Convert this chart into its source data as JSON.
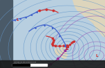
{
  "bg_ocean": "#b8cfe0",
  "bg_dark_left": "#4a5a68",
  "land_color": "#ddd5bc",
  "land_color2": "#ccc5aa",
  "isobar_blue": "#6699cc",
  "isobar_purple": "#9966bb",
  "front_cold": "#4466cc",
  "front_warm": "#cc3333",
  "front_occluded": "#993399",
  "low_color": "#cc2222",
  "high_color": "#2244bb",
  "figsize": [
    1.52,
    0.98
  ],
  "dpi": 100,
  "bottom_bar": "#1a1a1a",
  "text_color": "#ffffff"
}
